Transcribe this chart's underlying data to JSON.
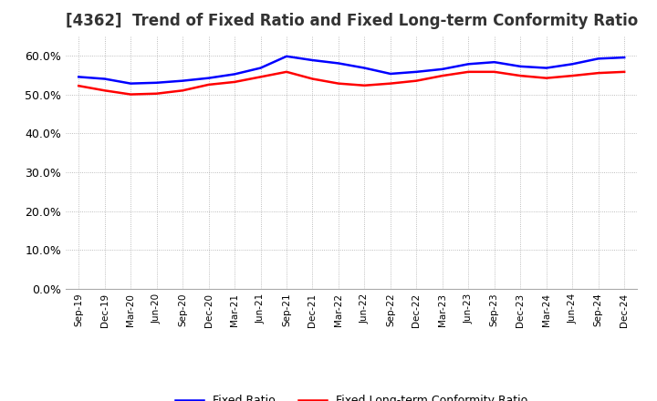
{
  "title": "[4362]  Trend of Fixed Ratio and Fixed Long-term Conformity Ratio",
  "title_fontsize": 12,
  "legend_labels": [
    "Fixed Ratio",
    "Fixed Long-term Conformity Ratio"
  ],
  "line_colors": [
    "#0000ff",
    "#ff0000"
  ],
  "ylim": [
    0.0,
    0.65
  ],
  "yticks": [
    0.0,
    0.1,
    0.2,
    0.3,
    0.4,
    0.5,
    0.6
  ],
  "x_labels": [
    "Sep-19",
    "Dec-19",
    "Mar-20",
    "Jun-20",
    "Sep-20",
    "Dec-20",
    "Mar-21",
    "Jun-21",
    "Sep-21",
    "Dec-21",
    "Mar-22",
    "Jun-22",
    "Sep-22",
    "Dec-22",
    "Mar-23",
    "Jun-23",
    "Sep-23",
    "Dec-23",
    "Mar-24",
    "Jun-24",
    "Sep-24",
    "Dec-24"
  ],
  "fixed_ratio": [
    0.545,
    0.54,
    0.528,
    0.53,
    0.535,
    0.542,
    0.552,
    0.568,
    0.598,
    0.588,
    0.58,
    0.568,
    0.553,
    0.558,
    0.565,
    0.578,
    0.583,
    0.572,
    0.568,
    0.578,
    0.592,
    0.595
  ],
  "fixed_lt_ratio": [
    0.522,
    0.51,
    0.5,
    0.502,
    0.51,
    0.525,
    0.532,
    0.545,
    0.558,
    0.54,
    0.528,
    0.523,
    0.528,
    0.535,
    0.548,
    0.558,
    0.558,
    0.548,
    0.542,
    0.548,
    0.555,
    0.558
  ],
  "background_color": "#ffffff",
  "grid_color": "#aaaaaa"
}
